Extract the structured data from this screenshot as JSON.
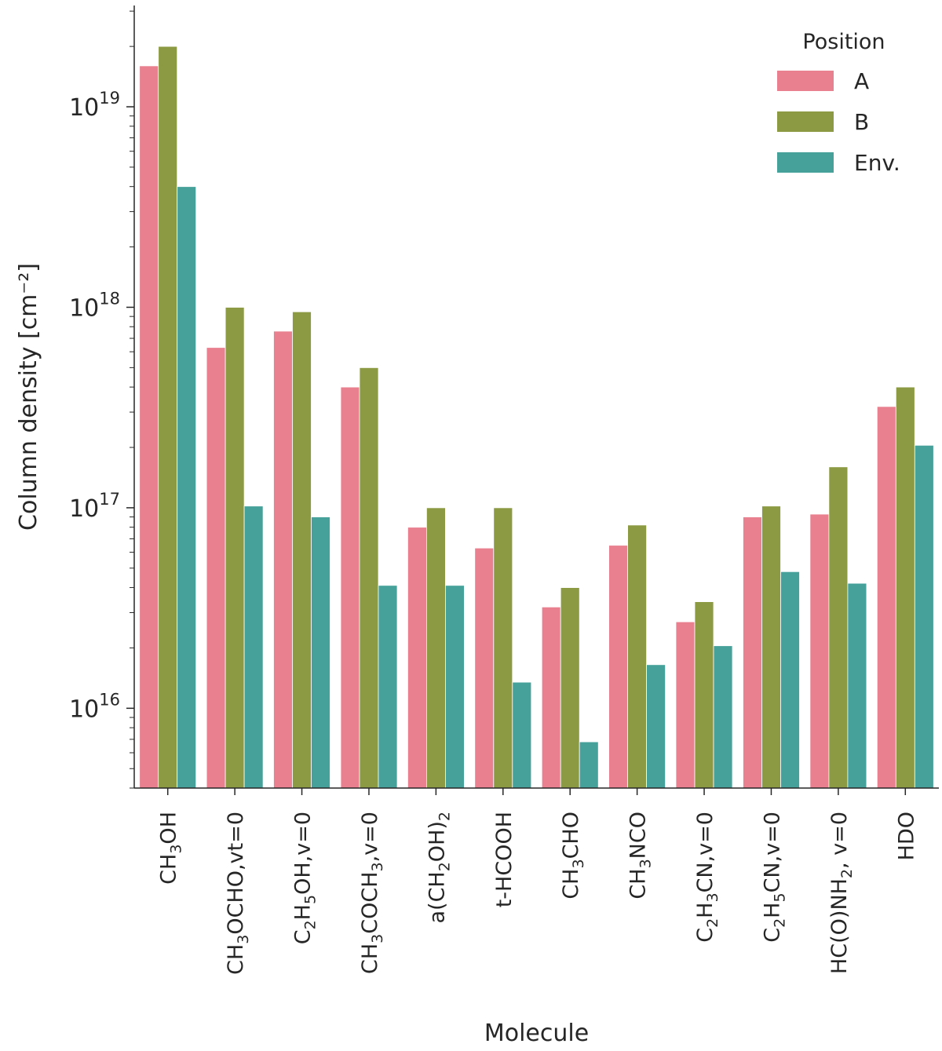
{
  "chart_data": {
    "type": "bar",
    "xlabel": "Molecule",
    "ylabel": "Column density [cm⁻²]",
    "yscale": "log",
    "ylim": [
      4000000000000000.0,
      3.2e+19
    ],
    "yticks": [
      1e+16,
      1e+17,
      1e+18,
      1e+19
    ],
    "ytick_labels": [
      {
        "base": "10",
        "exp": "16"
      },
      {
        "base": "10",
        "exp": "17"
      },
      {
        "base": "10",
        "exp": "18"
      },
      {
        "base": "10",
        "exp": "19"
      }
    ],
    "categories": [
      "CH3OH",
      "CH3OCHO,vt=0",
      "C2H5OH,v=0",
      "CH3COCH3,v=0",
      "a(CH2OH)2",
      "t-HCOOH",
      "CH3CHO",
      "CH3NCO",
      "C2H3CN,v=0",
      "C2H5CN,v=0",
      "HC(O)NH2, v=0",
      "HDO"
    ],
    "category_labels": [
      [
        {
          "t": "CH"
        },
        {
          "t": "3",
          "sub": true
        },
        {
          "t": "OH"
        }
      ],
      [
        {
          "t": "CH"
        },
        {
          "t": "3",
          "sub": true
        },
        {
          "t": "OCHO,vt=0"
        }
      ],
      [
        {
          "t": "C"
        },
        {
          "t": "2",
          "sub": true
        },
        {
          "t": "H"
        },
        {
          "t": "5",
          "sub": true
        },
        {
          "t": "OH,v=0"
        }
      ],
      [
        {
          "t": "CH"
        },
        {
          "t": "3",
          "sub": true
        },
        {
          "t": "COCH"
        },
        {
          "t": "3",
          "sub": true
        },
        {
          "t": ",v=0"
        }
      ],
      [
        {
          "t": "a(CH"
        },
        {
          "t": "2",
          "sub": true
        },
        {
          "t": "OH)"
        },
        {
          "t": "2",
          "sub": true
        }
      ],
      [
        {
          "t": "t-HCOOH"
        }
      ],
      [
        {
          "t": "CH"
        },
        {
          "t": "3",
          "sub": true
        },
        {
          "t": "CHO"
        }
      ],
      [
        {
          "t": "CH"
        },
        {
          "t": "3",
          "sub": true
        },
        {
          "t": "NCO"
        }
      ],
      [
        {
          "t": "C"
        },
        {
          "t": "2",
          "sub": true
        },
        {
          "t": "H"
        },
        {
          "t": "3",
          "sub": true
        },
        {
          "t": "CN,v=0"
        }
      ],
      [
        {
          "t": "C"
        },
        {
          "t": "2",
          "sub": true
        },
        {
          "t": "H"
        },
        {
          "t": "5",
          "sub": true
        },
        {
          "t": "CN,v=0"
        }
      ],
      [
        {
          "t": "HC(O)NH"
        },
        {
          "t": "2",
          "sub": true
        },
        {
          "t": ", v=0"
        }
      ],
      [
        {
          "t": "HDO"
        }
      ]
    ],
    "series": [
      {
        "name": "A",
        "color": "#e8808f",
        "values": [
          1.6e+19,
          6.3e+17,
          7.6e+17,
          4e+17,
          8e+16,
          6.3e+16,
          3.2e+16,
          6.5e+16,
          2.7e+16,
          9e+16,
          9.3e+16,
          3.2e+17
        ]
      },
      {
        "name": "B",
        "color": "#8c9a43",
        "values": [
          2e+19,
          1e+18,
          9.5e+17,
          5e+17,
          1e+17,
          1e+17,
          4e+16,
          8.2e+16,
          3.4e+16,
          1.02e+17,
          1.6e+17,
          4e+17
        ]
      },
      {
        "name": "Env.",
        "color": "#45a199",
        "values": [
          4e+18,
          1.02e+17,
          9e+16,
          4.1e+16,
          4.1e+16,
          1.35e+16,
          6800000000000000.0,
          1.65e+16,
          2.05e+16,
          4.8e+16,
          4.2e+16,
          2.05e+17
        ]
      }
    ],
    "legend": {
      "title": "Position",
      "placement": "top-right"
    },
    "grid": false
  }
}
